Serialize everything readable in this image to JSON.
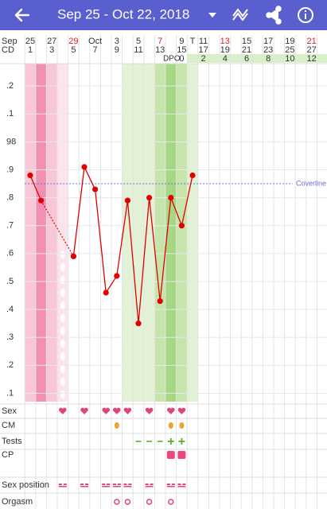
{
  "header": {
    "title": "Sep 25 - Oct 22, 2018"
  },
  "chart_data": {
    "type": "line",
    "row_labels": {
      "date": "Sep",
      "cd": "CD",
      "dpo": "DPO"
    },
    "dates": [
      "25",
      null,
      "27",
      null,
      "29",
      null,
      "Oct",
      null,
      "3",
      null,
      "5",
      null,
      "7",
      null,
      "9",
      "T",
      "11",
      null,
      "13",
      null,
      "15",
      null,
      "17",
      null,
      "19",
      null,
      "21",
      null
    ],
    "date_colors": [
      "#333",
      "#333",
      "#333",
      "#333",
      "#e02020",
      "#333",
      "#333",
      "#333",
      "#333",
      "#333",
      "#333",
      "#333",
      "#e02020",
      "#333",
      "#333",
      "#333",
      "#333",
      "#333",
      "#e02020",
      "#333",
      "#333",
      "#333",
      "#333",
      "#333",
      "#333",
      "#333",
      "#e02020",
      "#333"
    ],
    "cycle_days": [
      "1",
      null,
      "3",
      null,
      "5",
      null,
      "7",
      null,
      "9",
      null,
      "11",
      null,
      "13",
      null,
      "15",
      null,
      "17",
      null,
      "19",
      null,
      "21",
      null,
      "23",
      null,
      "25",
      null,
      "27",
      null
    ],
    "dpo": [
      null,
      null,
      null,
      null,
      null,
      null,
      null,
      null,
      null,
      null,
      null,
      null,
      null,
      null,
      "0",
      null,
      "2",
      null,
      "4",
      null,
      "6",
      null,
      "8",
      null,
      "10",
      null,
      "12",
      null
    ],
    "day_shading": [
      {
        "from": 0,
        "to": 0,
        "color": "#f9c6d8"
      },
      {
        "from": 1,
        "to": 1,
        "color": "#f290b4"
      },
      {
        "from": 2,
        "to": 2,
        "color": "#f9c6d8"
      },
      {
        "from": 3,
        "to": 3,
        "color": "#fbe4ec"
      },
      {
        "from": 9,
        "to": 11,
        "color": "#e3f2d6"
      },
      {
        "from": 12,
        "to": 12,
        "color": "#c5e5ab"
      },
      {
        "from": 13,
        "to": 13,
        "color": "#a6d884"
      },
      {
        "from": 14,
        "to": 14,
        "color": "#c5e5ab"
      },
      {
        "from": 15,
        "to": 15,
        "color": "#e3f2d6"
      }
    ],
    "series": [
      {
        "name": "Temperature",
        "color": "#e00000",
        "values": [
          97.88,
          97.79,
          null,
          null,
          97.59,
          97.91,
          97.83,
          97.46,
          97.52,
          97.79,
          97.35,
          97.8,
          97.43,
          97.8,
          97.7,
          97.88,
          null,
          null,
          null,
          null,
          null,
          null,
          null,
          null,
          null,
          null,
          null,
          null
        ]
      }
    ],
    "coverline": {
      "label": "Coverline",
      "value": 97.85,
      "color": "#6b6fd0"
    },
    "ylim": [
      97.07,
      98.28
    ],
    "yticks": [
      {
        "value": 98.2,
        "label": ".2"
      },
      {
        "value": 98.1,
        "label": ".1"
      },
      98,
      {
        "value": 97.9,
        "label": ".9"
      },
      {
        "value": 97.8,
        "label": ".8"
      },
      {
        "value": 97.7,
        "label": ".7"
      },
      {
        "value": 97.6,
        "label": ".6"
      },
      {
        "value": 97.5,
        "label": ".5"
      },
      {
        "value": 97.4,
        "label": ".4"
      },
      {
        "value": 97.3,
        "label": ".3"
      },
      {
        "value": 97.2,
        "label": ".2"
      },
      {
        "value": 97.1,
        "label": ".1"
      }
    ],
    "grid": true,
    "rows": [
      {
        "label": "Sex",
        "icon": "heart",
        "color": "#e0447a",
        "days": [
          3,
          5,
          7,
          8,
          9,
          11,
          13,
          14
        ]
      },
      {
        "label": "CM",
        "icon": "drop",
        "color": "#f0a030",
        "days": [
          8,
          13,
          14
        ]
      },
      {
        "label": "Tests",
        "icon": "dash",
        "color": "#55b030",
        "days": [
          10,
          11,
          12
        ]
      },
      {
        "label": "Tests",
        "icon": "plus",
        "color": "#55b030",
        "days": [
          13,
          14
        ]
      },
      {
        "label": "CP",
        "icon": "square",
        "color": "#e84a80",
        "days": [
          13,
          14
        ]
      },
      {
        "label": "Sex position",
        "icon": "pos",
        "color": "#e0447a",
        "days": [
          3,
          5,
          7,
          8,
          9,
          11,
          13,
          14
        ]
      },
      {
        "label": "Orgasm",
        "icon": "ring",
        "color": "#e0447a",
        "days": [
          8,
          9,
          11,
          13
        ]
      }
    ]
  }
}
